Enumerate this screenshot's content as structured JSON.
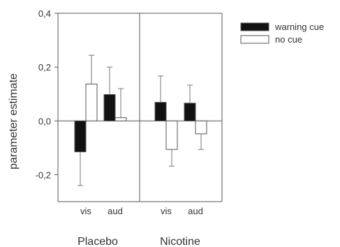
{
  "chart_data": {
    "type": "bar",
    "ylabel": "parameter estimate",
    "ylim": [
      -0.3,
      0.4
    ],
    "yticks": [
      -0.2,
      0.0,
      0.2,
      0.4
    ],
    "ytick_labels": [
      "-0,2",
      "0,0",
      "0,2",
      "0,4"
    ],
    "groups": [
      {
        "name": "Placebo",
        "categories": [
          "vis",
          "aud"
        ]
      },
      {
        "name": "Nicotine",
        "categories": [
          "vis",
          "aud"
        ]
      }
    ],
    "categories": [
      "Placebo vis",
      "Placebo aud",
      "Nicotine vis",
      "Nicotine aud"
    ],
    "category_labels": [
      "vis",
      "aud",
      "vis",
      "aud"
    ],
    "series": [
      {
        "name": "warning cue",
        "color": "#111111",
        "values": [
          -0.115,
          0.098,
          0.069,
          0.066
        ],
        "errors": [
          0.125,
          0.102,
          0.098,
          0.067
        ]
      },
      {
        "name": "no cue",
        "color": "#ffffff",
        "values": [
          0.137,
          0.012,
          -0.106,
          -0.048
        ],
        "errors": [
          0.107,
          0.108,
          0.062,
          0.058
        ]
      }
    ],
    "legend_position": "top-right",
    "grid": false
  }
}
